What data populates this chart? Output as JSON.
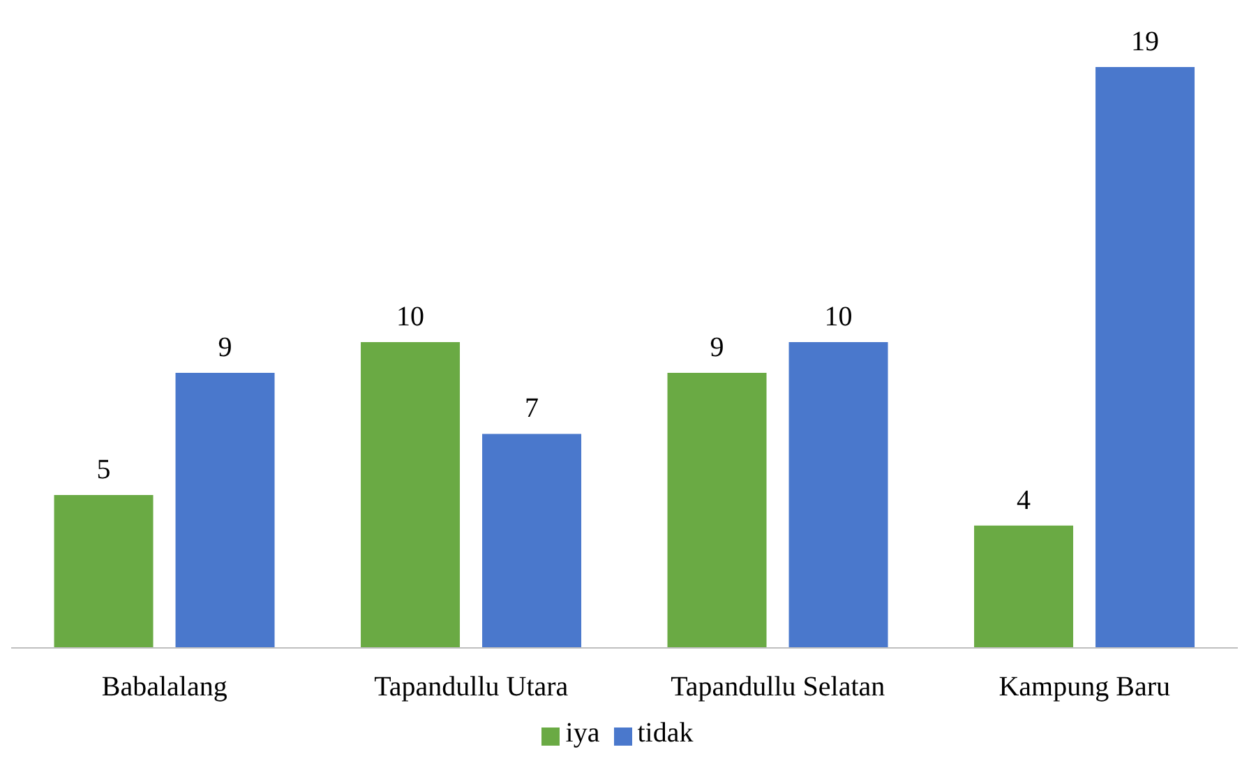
{
  "chart_data": {
    "type": "bar",
    "categories": [
      "Babalalang",
      "Tapandullu Utara",
      "Tapandullu Selatan",
      "Kampung Baru"
    ],
    "series": [
      {
        "name": "iya",
        "color": "#6aaa44",
        "values": [
          5,
          10,
          9,
          4
        ]
      },
      {
        "name": "tidak",
        "color": "#4a78cc",
        "values": [
          9,
          7,
          10,
          19
        ]
      }
    ],
    "data_labels": true,
    "legend": "bottom",
    "grid": false
  }
}
